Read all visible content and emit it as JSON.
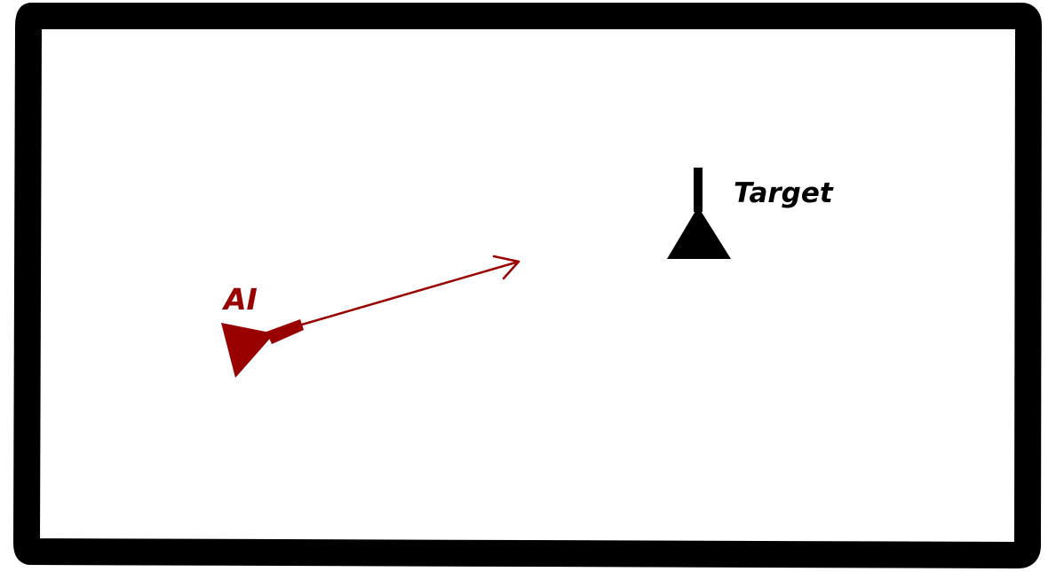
{
  "ai": {
    "label": "AI",
    "color": "#990000"
  },
  "target": {
    "label": "Target",
    "color": "#000000"
  },
  "frame": {
    "border_color": "#000000",
    "background_color": "#ffffff"
  },
  "icons": {
    "ai_marker": "ai-turret-icon",
    "target_marker": "target-marker-icon",
    "direction_arrow": "aim-arrow-icon"
  }
}
